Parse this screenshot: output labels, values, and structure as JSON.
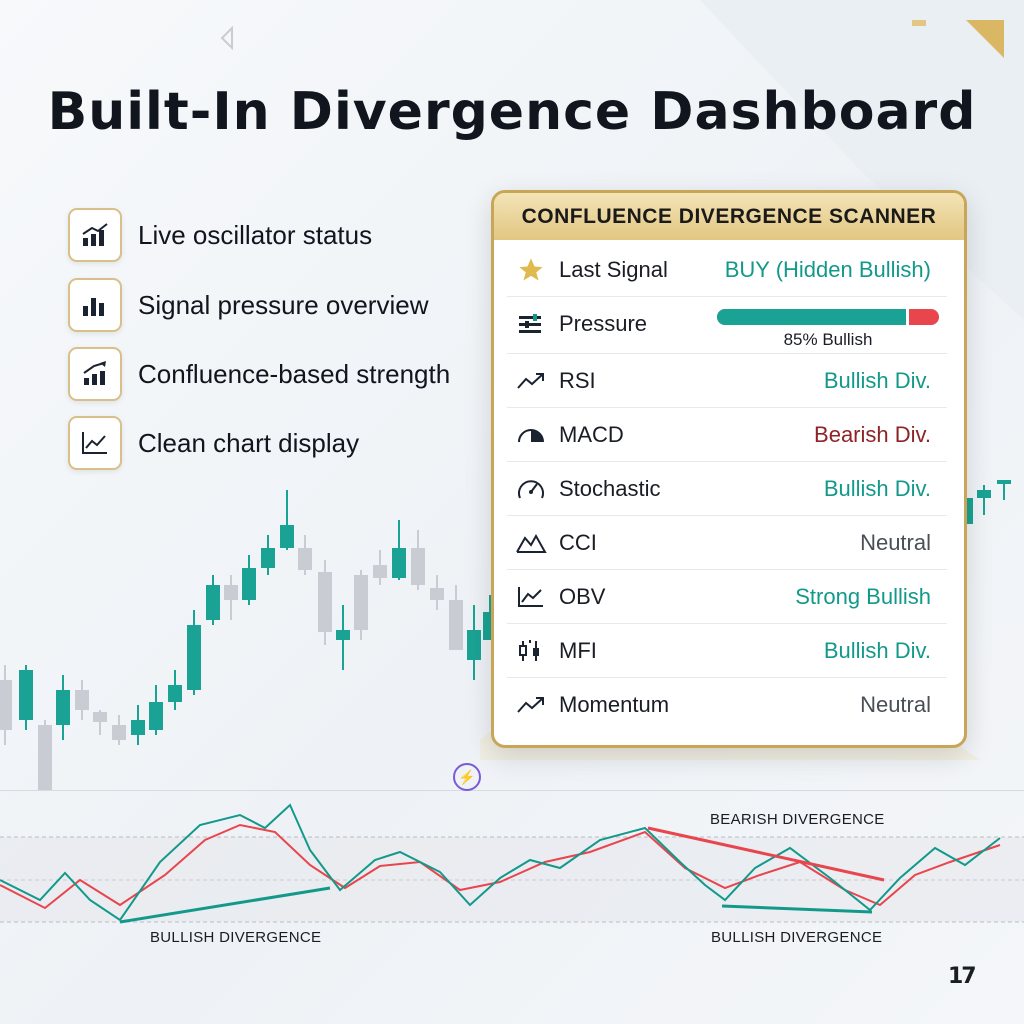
{
  "title": "Built-In Divergence Dashboard",
  "features": [
    {
      "icon": "bar-chart-up-icon",
      "label": "Live oscillator status"
    },
    {
      "icon": "bar-chart-icon",
      "label": "Signal pressure overview"
    },
    {
      "icon": "trend-up-arrow-icon",
      "label": "Confluence-based strength"
    },
    {
      "icon": "line-chart-icon",
      "label": "Clean chart display"
    }
  ],
  "panel": {
    "title": "CONFLUENCE DIVERGENCE SCANNER",
    "last_signal": {
      "icon": "star-icon",
      "label": "Last Signal",
      "value": "BUY (Hidden Bullish)"
    },
    "pressure": {
      "icon": "sliders-icon",
      "label": "Pressure",
      "bullish_fraction": 0.85,
      "text": "85% Bullish"
    },
    "rows": [
      {
        "icon": "trend-arrow-icon",
        "label": "RSI",
        "value": "Bullish Div.",
        "status": "bull"
      },
      {
        "icon": "gauge-half-icon",
        "label": "MACD",
        "value": "Bearish Div.",
        "status": "bear"
      },
      {
        "icon": "speedometer-icon",
        "label": "Stochastic",
        "value": "Bullish Div.",
        "status": "bull"
      },
      {
        "icon": "mountain-icon",
        "label": "CCI",
        "value": "Neutral",
        "status": "neut"
      },
      {
        "icon": "line-chart-icon",
        "label": "OBV",
        "value": "Strong Bullish",
        "status": "bull"
      },
      {
        "icon": "candles-icon",
        "label": "MFI",
        "value": "Bullish Div.",
        "status": "bull"
      },
      {
        "icon": "trend-arrow-icon",
        "label": "Momentum",
        "value": "Neutral",
        "status": "neut"
      }
    ]
  },
  "divergence_labels": {
    "bearish": "BEARISH DIVERGENCE",
    "bullish_left": "BULLISH DIVERGENCE",
    "bullish_right": "BULLISH DIVERGENCE"
  },
  "logo_text": "17",
  "colors": {
    "bull": "#13998a",
    "bear": "#e8454d",
    "gold": "#c9a657"
  }
}
